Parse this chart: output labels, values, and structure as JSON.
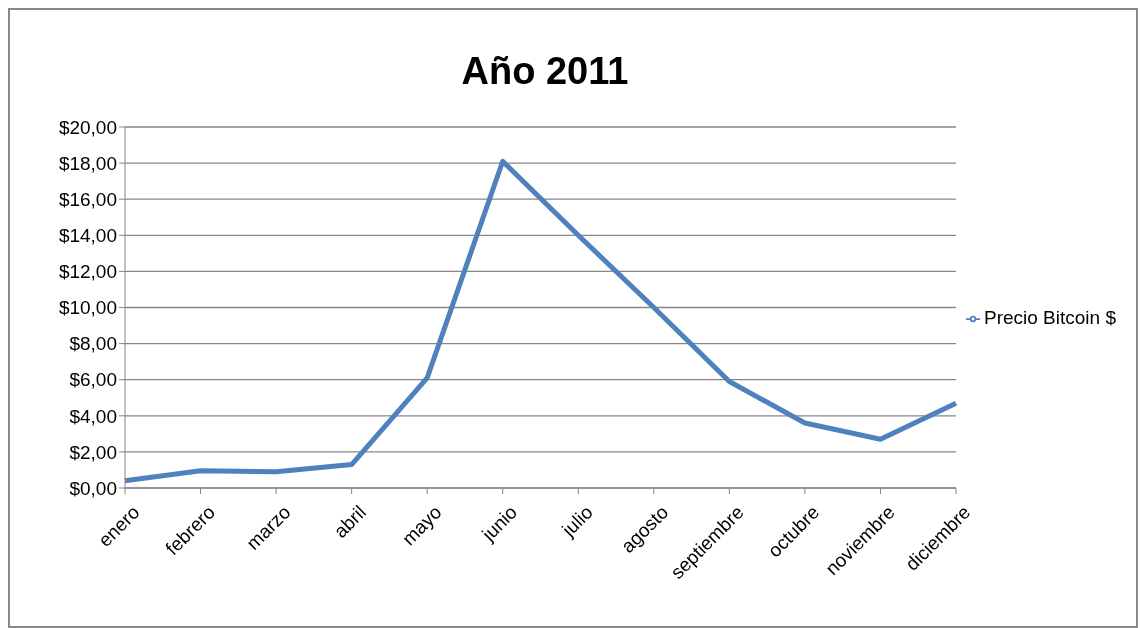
{
  "chart_data": {
    "type": "line",
    "title": "Año 2011",
    "categories": [
      "enero",
      "febrero",
      "marzo",
      "abril",
      "mayo",
      "junio",
      "julio",
      "agosto",
      "septiembre",
      "octubre",
      "noviembre",
      "diciembre"
    ],
    "series": [
      {
        "name": "Precio Bitcoin $",
        "color": "#4f81bd",
        "values": [
          0.4,
          0.95,
          0.9,
          1.3,
          6.1,
          18.1,
          14.0,
          10.0,
          5.9,
          3.6,
          2.7,
          4.7
        ]
      }
    ],
    "ylim": [
      0,
      20
    ],
    "yticks": [
      {
        "value": 0,
        "label": "$0,00"
      },
      {
        "value": 2,
        "label": "$2,00"
      },
      {
        "value": 4,
        "label": "$4,00"
      },
      {
        "value": 6,
        "label": "$6,00"
      },
      {
        "value": 8,
        "label": "$8,00"
      },
      {
        "value": 10,
        "label": "$10,00"
      },
      {
        "value": 12,
        "label": "$12,00"
      },
      {
        "value": 14,
        "label": "$14,00"
      },
      {
        "value": 16,
        "label": "$16,00"
      },
      {
        "value": 18,
        "label": "$18,00"
      },
      {
        "value": 20,
        "label": "$20,00"
      }
    ],
    "grid": "y",
    "legend": "right",
    "marker": "none"
  }
}
